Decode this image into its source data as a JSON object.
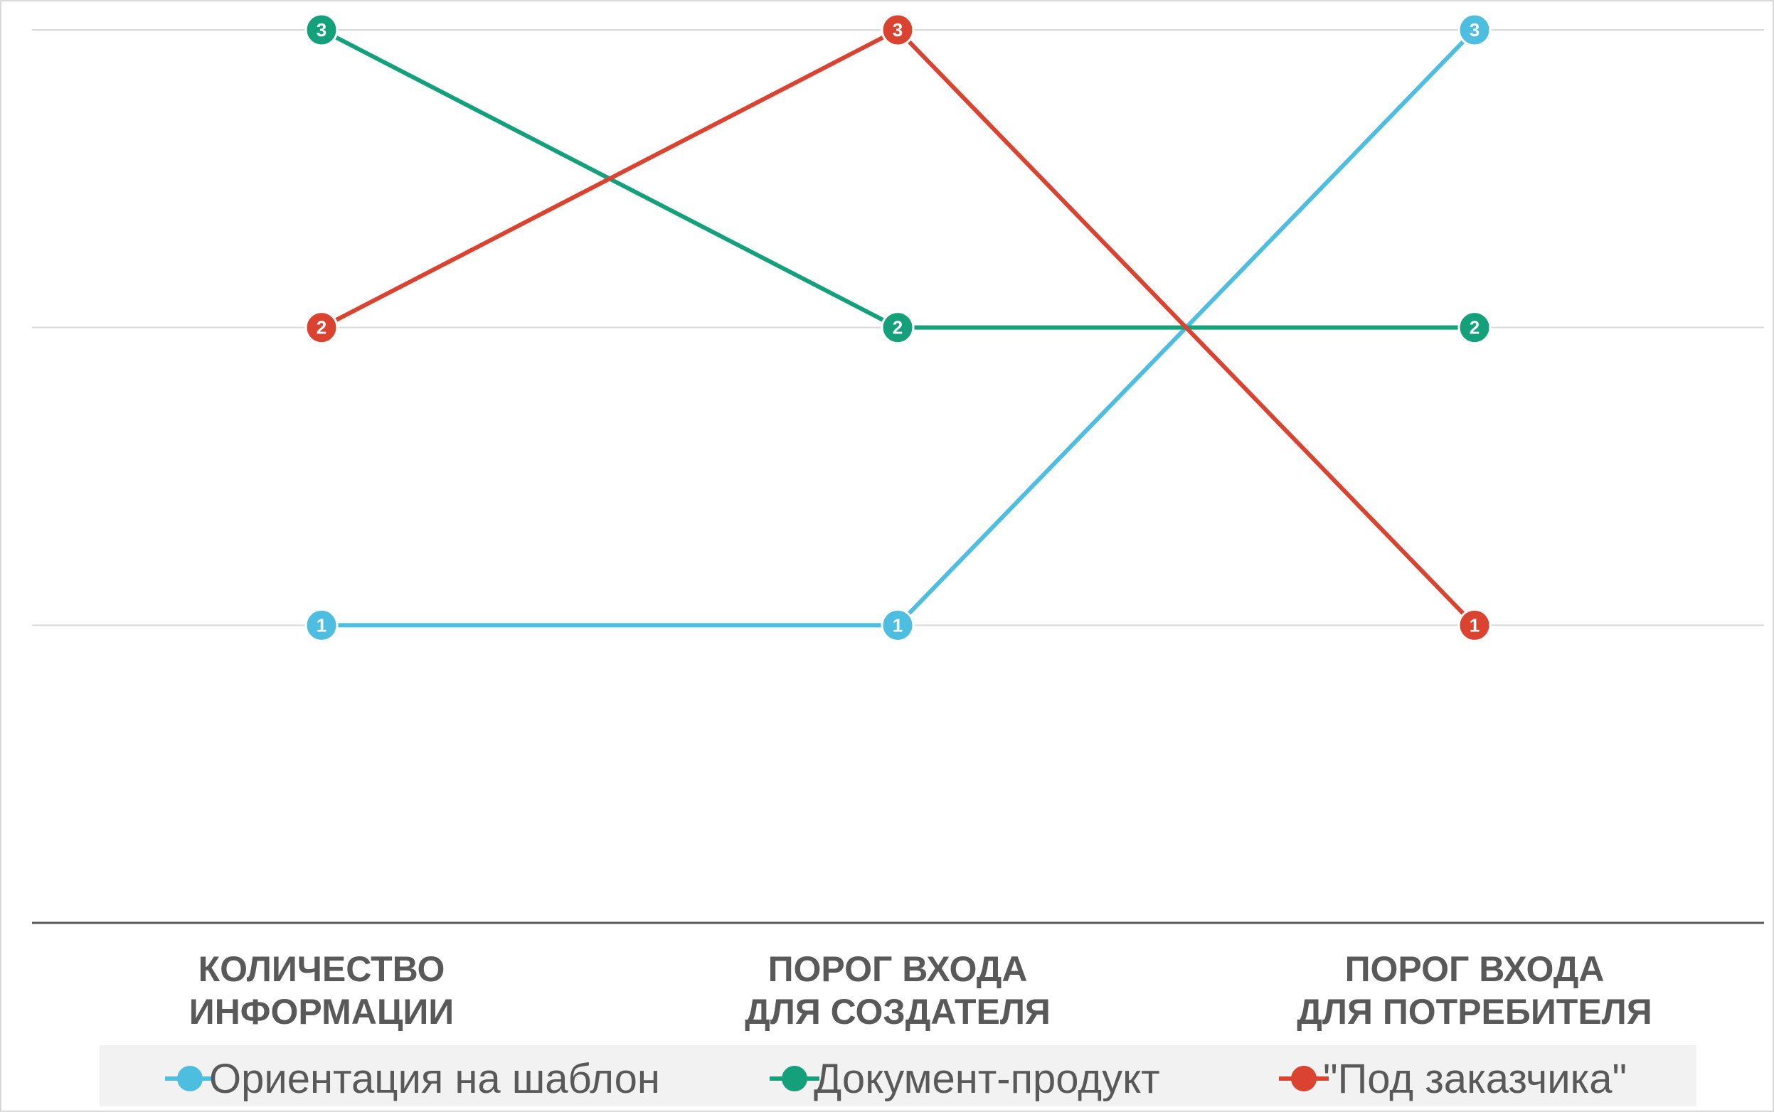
{
  "chart_data": {
    "type": "line",
    "categories": [
      [
        "КОЛИЧЕСТВО",
        "ИНФОРМАЦИИ"
      ],
      [
        "ПОРОГ ВХОДА",
        "ДЛЯ СОЗДАТЕЛЯ"
      ],
      [
        "ПОРОГ ВХОДА",
        "ДЛЯ ПОТРЕБИТЕЛЯ"
      ]
    ],
    "ylim": [
      0,
      3
    ],
    "grid": true,
    "legend": "bottom",
    "series": [
      {
        "name": "Ориентация на шаблон",
        "color": "#4DBDE0",
        "values": [
          1,
          1,
          3
        ]
      },
      {
        "name": "Документ-продукт",
        "color": "#14A07A",
        "values": [
          3,
          2,
          2
        ]
      },
      {
        "name": "\"Под заказчика\"",
        "color": "#D9432F",
        "values": [
          2,
          3,
          1
        ]
      }
    ]
  }
}
